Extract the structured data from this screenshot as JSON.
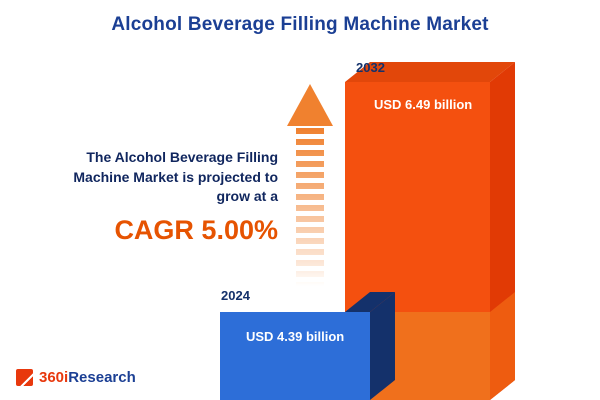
{
  "title": "Alcohol Beverage Filling Machine Market",
  "annotation": {
    "line1": "The Alcohol Beverage Filling",
    "line2": "Machine Market is projected to",
    "line3": "grow at a",
    "cagr": "CAGR 5.00%"
  },
  "chart_data": {
    "type": "bar",
    "title": "Alcohol Beverage Filling Machine Market",
    "categories": [
      "2024",
      "2032"
    ],
    "values": [
      4.39,
      6.49
    ],
    "unit": "USD billion",
    "value_labels": [
      "USD 4.39 billion",
      "USD 6.49 billion"
    ],
    "cagr_percent": 5.0,
    "legend_position": "none",
    "grid": false,
    "colors": {
      "bar_2024": "#2d6ed8",
      "bar_2024_side": "#14316b",
      "bar_2032": "#f4500f",
      "bar_2032_side": "#e13a05",
      "accent_orange": "#e65301",
      "navy_text": "#1b3f94"
    }
  },
  "logo": {
    "prefix": "360i",
    "suffix": "Research"
  }
}
